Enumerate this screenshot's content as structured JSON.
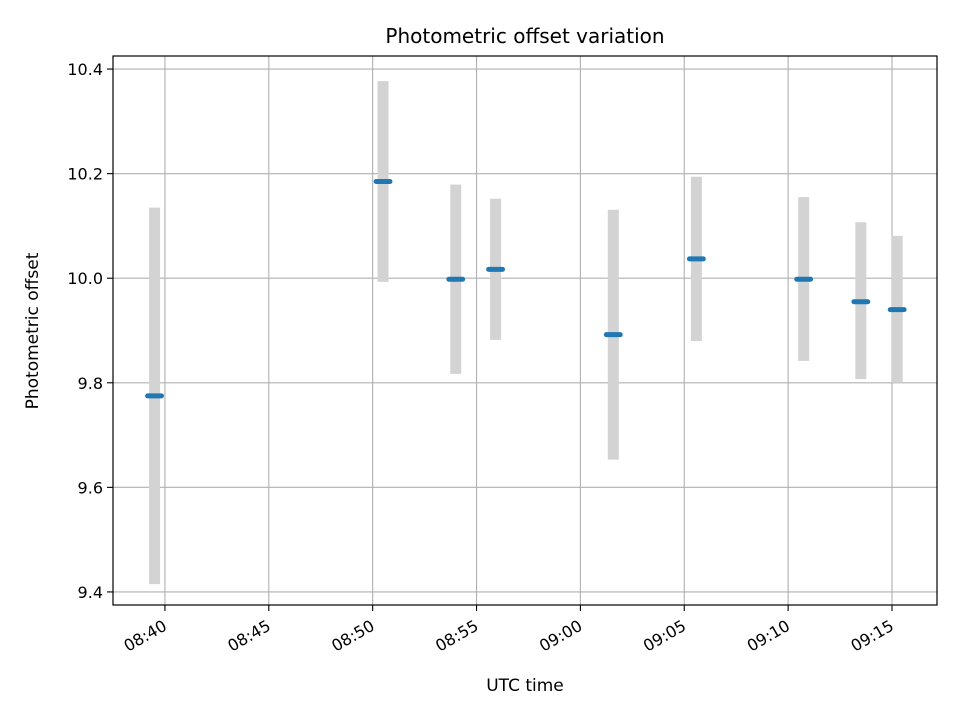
{
  "chart_data": {
    "type": "scatter",
    "title": "Photometric offset variation",
    "xlabel": "UTC time",
    "ylabel": "Photometric offset",
    "x_axis_type": "time",
    "xlim": [
      "08:37:30",
      "09:17:10"
    ],
    "ylim": [
      9.375,
      10.425
    ],
    "x_ticks": [
      "08:40",
      "08:45",
      "08:50",
      "08:55",
      "09:00",
      "09:05",
      "09:10",
      "09:15"
    ],
    "y_ticks": [
      "9.4",
      "9.6",
      "9.8",
      "10.0",
      "10.2",
      "10.4"
    ],
    "grid": true,
    "legend": false,
    "series": [
      {
        "marker_color": "#1f77b4",
        "error_color": "#d3d3d3",
        "points": [
          {
            "start": "08:39:10",
            "end": "08:39:50",
            "y": 9.775,
            "err_low": 9.415,
            "err_high": 10.135
          },
          {
            "start": "08:50:10",
            "end": "08:50:50",
            "y": 10.185,
            "err_low": 9.993,
            "err_high": 10.377
          },
          {
            "start": "08:53:40",
            "end": "08:54:20",
            "y": 9.998,
            "err_low": 9.817,
            "err_high": 10.179
          },
          {
            "start": "08:55:35",
            "end": "08:56:15",
            "y": 10.017,
            "err_low": 9.882,
            "err_high": 10.152
          },
          {
            "start": "09:01:15",
            "end": "09:01:55",
            "y": 9.892,
            "err_low": 9.653,
            "err_high": 10.131
          },
          {
            "start": "09:05:15",
            "end": "09:05:55",
            "y": 10.037,
            "err_low": 9.88,
            "err_high": 10.194
          },
          {
            "start": "09:10:25",
            "end": "09:11:05",
            "y": 9.998,
            "err_low": 9.842,
            "err_high": 10.155
          },
          {
            "start": "09:13:10",
            "end": "09:13:50",
            "y": 9.955,
            "err_low": 9.807,
            "err_high": 10.107
          },
          {
            "start": "09:14:55",
            "end": "09:15:35",
            "y": 9.94,
            "err_low": 9.8,
            "err_high": 10.081
          }
        ]
      }
    ]
  }
}
